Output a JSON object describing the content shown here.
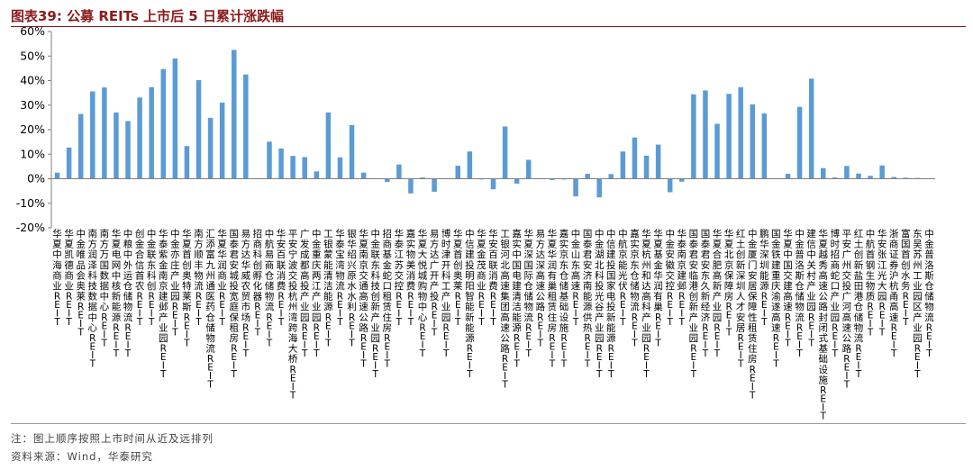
{
  "header": {
    "title": "图表39:  公募 REITs 上市后 5 日累计涨跌幅"
  },
  "footer": {
    "note": "注：图上顺序按照上市时间从近及远排列",
    "source": "资料来源：Wind，华泰研究"
  },
  "colors": {
    "bar": "#5B9BD5",
    "title": "#8B1A1A",
    "axis": "#7f7f7f"
  },
  "chart_data": {
    "type": "bar",
    "title": "",
    "xlabel": "",
    "ylabel": "",
    "ylim": [
      -0.2,
      0.6
    ],
    "yticks": [
      -0.2,
      -0.1,
      0,
      0.1,
      0.2,
      0.3,
      0.4,
      0.5,
      0.6
    ],
    "ytick_labels": [
      "-20%",
      "-10%",
      "0%",
      "10%",
      "20%",
      "30%",
      "40%",
      "50%",
      "60%"
    ],
    "grid": false,
    "categories": [
      "华夏中海商业REIT",
      "华夏凯德商业REIT",
      "中金唯品会奥莱REIT",
      "南方润泽科技数据中心REIT",
      "南方万国数据中心REIT",
      "华夏电网中核新能源REIT",
      "中粮中外运仓储物流REIT",
      "创金合信首农REIT",
      "中金联东科创REIT",
      "华泰紫金南京建邺产业园REIT",
      "中金亦庄产业园REIT",
      "华夏首创奥特莱斯REIT",
      "南方顺丰物流REIT",
      "汇添富九州通医药仓储物流REIT",
      "华夏华润商业REIT",
      "国泰君安城投宽庭保租房REIT",
      "易方达华威农贸市场REIT",
      "招商科创孵化器REIT",
      "中航易商仓储物流REIT",
      "华安百联消费REIT",
      "平安宁波交投杭州湾跨海大桥REIT",
      "广发成都高投产业园REIT",
      "中金重庆两江产业园REIT",
      "工银蒙能清洁能源REIT",
      "华泰宝湾物流REIT",
      "银华绍兴原水水利REIT",
      "华夏南京交通高速公路REIT",
      "中金联东科技创新产业园REIT",
      "招商基金蛇口租赁住房REIT",
      "华泰江苏交控REIT",
      "嘉实物美消费REIT",
      "华夏大悦城购物中心REIT",
      "易方达广开产投REIT",
      "博时津开科工产业园REIT",
      "华夏首创奥莱REIT",
      "中信建投明阳智能新能源REIT",
      "华夏金茂商业REIT",
      "华安百联消费REIT",
      "工银河北高速集团高速公路REIT",
      "嘉实中国电建清洁能源REIT",
      "华夏深国际仓储物流REIT",
      "易方达深高速公路REIT",
      "华夏华润有巢租赁住房REIT",
      "嘉实京东仓储基础设施REIT",
      "中金山东高速REIT",
      "国泰君安济南能源供热REIT",
      "中金湖北科投光谷产业园REIT",
      "中信建投国家电投新能源REIT",
      "中航京能光伏REIT",
      "嘉实京东仓储物流REIT",
      "华夏杭州和达高科产业园REIT",
      "华夏基金华润有巢REIT",
      "中金安徽交控REIT",
      "华泰南京建邺REIT",
      "国泰君安临港创新产业园REIT",
      "国泰君安东久新经济REIT",
      "华夏合肥高新产业园REIT",
      "华夏北京保障房REIT",
      "红土创新深圳人才安居REIT",
      "中金厦门安居保障性租赁住房REIT",
      "鹏华深圳能源REIT",
      "国金铁建重庆渝遂高速REIT",
      "华夏中国交建高速REIT",
      "中金普洛斯仓储物流REIT",
      "建信中关村产业园REIT",
      "华夏越秀高速公路封闭式基础设施REIT",
      "博时招商蛇口产业园REIT",
      "平安广州交投广河高速公路REIT",
      "红土创新盐田港仓储物流REIT",
      "中航首钢生物质REIT",
      "华安张江光大园REIT",
      "浙商证券沪杭甬高速REIT",
      "富国首创水务REIT",
      "东吴苏州工业园区产业园REIT",
      "中金普洛斯仓储物流REIT"
    ],
    "values": [
      0.025,
      0.127,
      0.264,
      0.356,
      0.372,
      0.27,
      0.235,
      0.331,
      0.373,
      0.447,
      0.49,
      0.133,
      0.402,
      0.248,
      0.31,
      0.525,
      0.425,
      0.0,
      0.151,
      0.123,
      0.093,
      0.088,
      0.03,
      0.27,
      0.087,
      0.219,
      0.025,
      0.0,
      -0.013,
      0.058,
      -0.06,
      0.005,
      -0.053,
      0.001,
      0.053,
      0.111,
      -0.002,
      -0.043,
      0.213,
      -0.02,
      0.077,
      0.002,
      -0.005,
      -0.003,
      -0.072,
      0.02,
      -0.076,
      0.019,
      0.111,
      0.168,
      0.094,
      0.139,
      -0.055,
      -0.012,
      0.344,
      0.36,
      0.224,
      0.346,
      0.373,
      0.303,
      0.266,
      0.002,
      0.02,
      0.293,
      0.408,
      0.043,
      0.005,
      0.052,
      0.021,
      0.012,
      0.054,
      0.007,
      0.004,
      0.003,
      0.0
    ]
  }
}
